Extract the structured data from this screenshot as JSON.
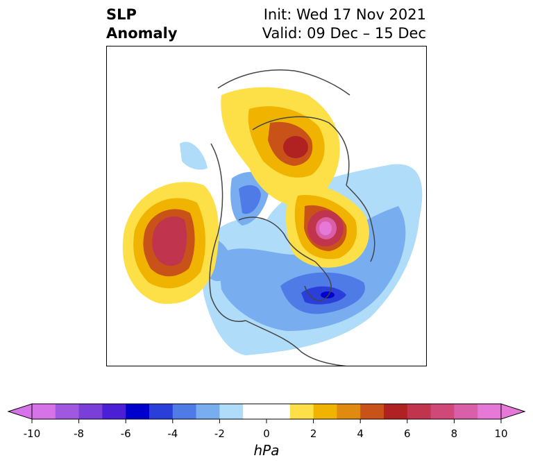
{
  "title": {
    "line1": "SLP",
    "line2": "Anomaly",
    "init": "Init: Wed 17 Nov 2021",
    "valid": "Valid: 09 Dec – 15 Dec"
  },
  "colorbar": {
    "units": "hPa",
    "ticks": [
      "-10",
      "-8",
      "-6",
      "-4",
      "-2",
      "0",
      "2",
      "4",
      "6",
      "8",
      "10"
    ],
    "colors": [
      "#d773e8",
      "#a058e0",
      "#7a3fd8",
      "#4a1fd6",
      "#0000cc",
      "#2a3fd9",
      "#4f7be6",
      "#78aef0",
      "#aedcf9",
      "#ffffff",
      "#ffffff",
      "#fde047",
      "#f0b400",
      "#e08a10",
      "#c85218",
      "#b02222",
      "#c0344e",
      "#d04878",
      "#d960a8",
      "#e678d8"
    ]
  }
}
